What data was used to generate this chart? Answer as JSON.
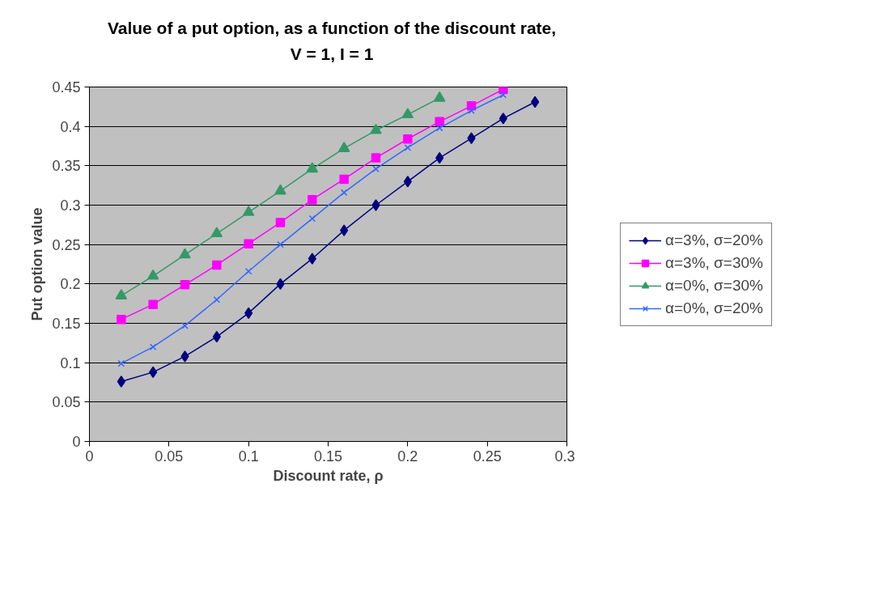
{
  "chart_data": {
    "type": "line",
    "title": "Value of a put option, as a function of the discount rate,\nV = 1, I = 1",
    "xlabel": "Discount rate, ρ",
    "ylabel": "Put option value",
    "x": [
      0.02,
      0.04,
      0.06,
      0.08,
      0.1,
      0.12,
      0.14,
      0.16,
      0.18,
      0.2,
      0.22,
      0.24,
      0.26,
      0.28
    ],
    "series": [
      {
        "name": "α=3%, σ=20%",
        "color": "#000080",
        "marker": "diamond",
        "values": [
          0.076,
          0.088,
          0.108,
          0.133,
          0.163,
          0.2,
          0.232,
          0.268,
          0.3,
          0.33,
          0.36,
          0.385,
          0.41,
          0.431
        ]
      },
      {
        "name": "α=3%, σ=30%",
        "color": "#ff00ff",
        "marker": "square",
        "values": [
          0.155,
          0.174,
          0.199,
          0.224,
          0.251,
          0.278,
          0.307,
          0.333,
          0.36,
          0.384,
          0.406,
          0.426,
          0.447,
          null
        ]
      },
      {
        "name": "α=0%, σ=30%",
        "color": "#339966",
        "marker": "triangle",
        "values": [
          0.185,
          0.21,
          0.237,
          0.264,
          0.291,
          0.318,
          0.346,
          0.372,
          0.395,
          0.415,
          0.436,
          null,
          null,
          null
        ]
      },
      {
        "name": "α=0%, σ=20%",
        "color": "#3366ff",
        "marker": "cross",
        "values": [
          0.099,
          0.12,
          0.147,
          0.18,
          0.216,
          0.25,
          0.283,
          0.316,
          0.346,
          0.373,
          0.398,
          0.42,
          0.44,
          null
        ]
      }
    ],
    "xlim": [
      0,
      0.3
    ],
    "xticks": [
      0,
      0.05,
      0.1,
      0.15,
      0.2,
      0.25,
      0.3
    ],
    "ylim": [
      0,
      0.45
    ],
    "yticks": [
      0,
      0.05,
      0.1,
      0.15,
      0.2,
      0.25,
      0.3,
      0.35,
      0.4,
      0.45
    ],
    "grid": "y",
    "legend": "right",
    "line_style": "solid"
  }
}
